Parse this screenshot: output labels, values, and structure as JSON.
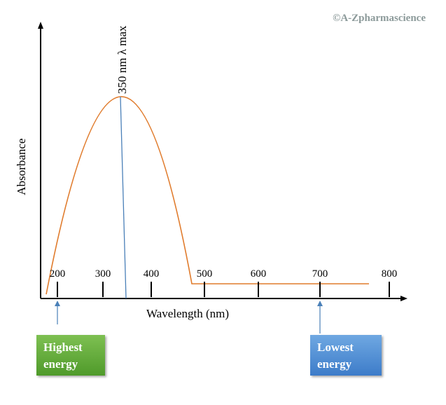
{
  "watermark": "©A-Zpharmascience",
  "peak_label": "350 nm λ max",
  "y_axis_label": "Absorbance",
  "x_axis_label": "Wavelength (nm)",
  "x_ticks": [
    "200",
    "300",
    "400",
    "500",
    "600",
    "700",
    "800"
  ],
  "markers": [
    {
      "label": "Highest energy"
    },
    {
      "label": "Lowest energy"
    }
  ]
}
